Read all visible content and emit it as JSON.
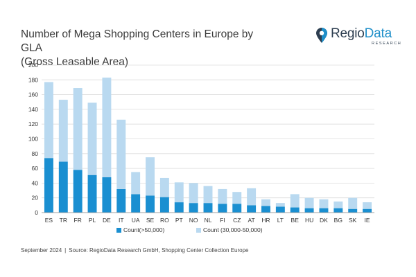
{
  "title_line1": "Number of Mega Shopping Centers in Europe by GLA",
  "title_line2": "(Gross Leasable Area)",
  "logo": {
    "brand_part1": "Regio",
    "brand_part2": "Data",
    "sub": "RESEARCH",
    "icon": "location-pin-icon"
  },
  "footer": {
    "date": "September 2024",
    "separator": "|",
    "source": "Source: RegioData Research GmbH, Shopping Center Collection Europe"
  },
  "colors": {
    "large": "#1a8fd1",
    "medium": "#b9d9f0",
    "grid": "#dcdcdc",
    "brand": "#1f8fc9"
  },
  "chart_data": {
    "type": "bar",
    "stacked": true,
    "categories": [
      "ES",
      "TR",
      "FR",
      "PL",
      "DE",
      "IT",
      "UA",
      "SE",
      "RO",
      "PT",
      "NO",
      "NL",
      "FI",
      "CZ",
      "AT",
      "HR",
      "LT",
      "BE",
      "HU",
      "DK",
      "BG",
      "SK",
      "IE"
    ],
    "series": [
      {
        "name": "Count(>50,000)",
        "values": [
          74,
          69,
          58,
          51,
          48,
          32,
          25,
          23,
          21,
          14,
          13,
          13,
          12,
          12,
          10,
          9,
          8,
          7,
          6,
          6,
          6,
          5,
          5
        ]
      },
      {
        "name": "Count (30,000-50,000)",
        "values": [
          103,
          84,
          111,
          98,
          135,
          94,
          30,
          52,
          26,
          27,
          27,
          23,
          20,
          16,
          23,
          9,
          5,
          18,
          14,
          12,
          9,
          15,
          9
        ]
      }
    ],
    "ylim": [
      0,
      200
    ],
    "yticks": [
      0,
      20,
      40,
      60,
      80,
      100,
      120,
      140,
      160,
      180,
      200
    ],
    "grid": true,
    "legend_position": "bottom-left",
    "xlabel": "",
    "ylabel": ""
  }
}
